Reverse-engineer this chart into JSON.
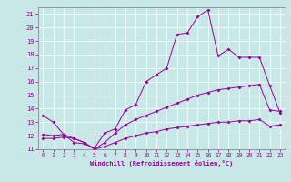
{
  "title": "",
  "xlabel": "Windchill (Refroidissement éolien,°C)",
  "bg_color": "#c8e8e8",
  "line_color": "#990099",
  "grid_color": "#ffffff",
  "xlim": [
    -0.5,
    23.5
  ],
  "ylim": [
    11,
    21.5
  ],
  "yticks": [
    11,
    12,
    13,
    14,
    15,
    16,
    17,
    18,
    19,
    20,
    21
  ],
  "xticks": [
    0,
    1,
    2,
    3,
    4,
    5,
    6,
    7,
    8,
    9,
    10,
    11,
    12,
    13,
    14,
    15,
    16,
    17,
    18,
    19,
    20,
    21,
    22,
    23
  ],
  "line1_x": [
    0,
    1,
    2,
    3,
    4,
    5,
    6,
    7,
    8,
    9,
    10,
    11,
    12,
    13,
    14,
    15,
    16,
    17,
    18,
    19,
    20,
    21,
    22,
    23
  ],
  "line1_y": [
    13.5,
    13.0,
    12.1,
    11.5,
    11.4,
    11.1,
    12.2,
    12.5,
    13.9,
    14.3,
    16.0,
    16.5,
    17.0,
    19.5,
    19.6,
    20.8,
    21.3,
    17.9,
    18.4,
    17.8,
    17.8,
    17.8,
    15.7,
    13.7
  ],
  "line2_x": [
    0,
    1,
    2,
    3,
    4,
    5,
    6,
    7,
    8,
    9,
    10,
    11,
    12,
    13,
    14,
    15,
    16,
    17,
    18,
    19,
    20,
    21,
    22,
    23
  ],
  "line2_y": [
    12.1,
    12.0,
    12.1,
    11.8,
    11.5,
    11.0,
    11.5,
    12.2,
    12.8,
    13.2,
    13.5,
    13.8,
    14.1,
    14.4,
    14.7,
    15.0,
    15.2,
    15.4,
    15.5,
    15.6,
    15.7,
    15.8,
    13.9,
    13.8
  ],
  "line3_x": [
    0,
    1,
    2,
    3,
    4,
    5,
    6,
    7,
    8,
    9,
    10,
    11,
    12,
    13,
    14,
    15,
    16,
    17,
    18,
    19,
    20,
    21,
    22,
    23
  ],
  "line3_y": [
    11.8,
    11.8,
    11.9,
    11.8,
    11.5,
    11.0,
    11.2,
    11.5,
    11.8,
    12.0,
    12.2,
    12.3,
    12.5,
    12.6,
    12.7,
    12.8,
    12.9,
    13.0,
    13.0,
    13.1,
    13.1,
    13.2,
    12.7,
    12.8
  ]
}
